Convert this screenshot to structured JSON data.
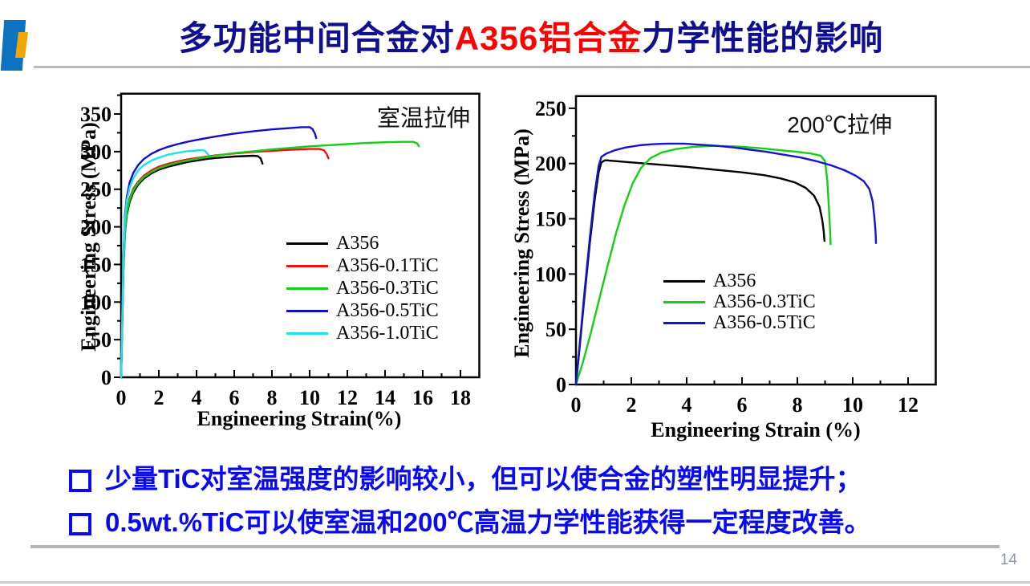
{
  "slide": {
    "title": {
      "prefix": "多功能中间合金对",
      "highlight": "A356铝合金",
      "suffix": "力学性能的影响"
    },
    "bullets": [
      "少量TiC对室温强度的影响较小，但可以使合金的塑性明显提升；",
      "0.5wt.%TiC可以使室温和200℃高温力学性能获得一定程度改善。"
    ],
    "page_number": "14",
    "colors": {
      "title": "#10108f",
      "title_highlight": "#ff0000",
      "bullet": "#0a0af0",
      "logo_blue": "#0d72bf",
      "logo_orange": "#f2a700"
    }
  },
  "chart_data": [
    {
      "type": "line",
      "title_annotation": "室温拉伸",
      "xlabel": "Engineering Strain(%)",
      "ylabel": "Engineering Stress (MPa)",
      "xlim": [
        0,
        19
      ],
      "ylim": [
        0,
        377
      ],
      "xticks": [
        0,
        2,
        4,
        6,
        8,
        10,
        12,
        14,
        16,
        18
      ],
      "yticks": [
        0,
        50,
        100,
        150,
        200,
        250,
        300,
        350
      ],
      "grid": false,
      "legend_position": "center-right",
      "series": [
        {
          "name": "A356",
          "color": "#000000",
          "points": [
            [
              0,
              0
            ],
            [
              0.06,
              70
            ],
            [
              0.12,
              140
            ],
            [
              0.2,
              190
            ],
            [
              0.3,
              216
            ],
            [
              0.45,
              233
            ],
            [
              0.65,
              246
            ],
            [
              0.9,
              256
            ],
            [
              1.2,
              264
            ],
            [
              1.6,
              271
            ],
            [
              2,
              276
            ],
            [
              2.5,
              280
            ],
            [
              3,
              283
            ],
            [
              3.5,
              286
            ],
            [
              4,
              288
            ],
            [
              4.5,
              290
            ],
            [
              5,
              291.5
            ],
            [
              5.5,
              292.5
            ],
            [
              6,
              293.5
            ],
            [
              6.5,
              294
            ],
            [
              7,
              294.5
            ],
            [
              7.25,
              294
            ],
            [
              7.4,
              291
            ],
            [
              7.5,
              284
            ]
          ]
        },
        {
          "name": "A356-0.1TiC",
          "color": "#ee1111",
          "points": [
            [
              0,
              0
            ],
            [
              0.06,
              72
            ],
            [
              0.12,
              144
            ],
            [
              0.2,
              194
            ],
            [
              0.3,
              221
            ],
            [
              0.45,
              238
            ],
            [
              0.65,
              251
            ],
            [
              0.9,
              260
            ],
            [
              1.2,
              268
            ],
            [
              1.6,
              275
            ],
            [
              2,
              280
            ],
            [
              2.5,
              284
            ],
            [
              3,
              287
            ],
            [
              3.5,
              289.5
            ],
            [
              4,
              291.5
            ],
            [
              5,
              295
            ],
            [
              6,
              297.5
            ],
            [
              7,
              299.5
            ],
            [
              8,
              301
            ],
            [
              9,
              302.5
            ],
            [
              10,
              303.5
            ],
            [
              10.5,
              303.5
            ],
            [
              10.75,
              302
            ],
            [
              10.9,
              297
            ],
            [
              11,
              291
            ]
          ]
        },
        {
          "name": "A356-0.3TiC",
          "color": "#14d014",
          "points": [
            [
              0,
              0
            ],
            [
              0.06,
              71
            ],
            [
              0.12,
              142
            ],
            [
              0.2,
              192
            ],
            [
              0.3,
              219
            ],
            [
              0.45,
              236
            ],
            [
              0.65,
              249
            ],
            [
              0.9,
              258
            ],
            [
              1.2,
              266
            ],
            [
              1.6,
              273
            ],
            [
              2,
              278
            ],
            [
              2.5,
              282
            ],
            [
              3,
              285.5
            ],
            [
              3.5,
              288
            ],
            [
              4,
              290.5
            ],
            [
              5,
              294.5
            ],
            [
              6,
              298
            ],
            [
              7,
              300.5
            ],
            [
              8,
              303
            ],
            [
              9,
              305
            ],
            [
              10,
              307
            ],
            [
              11,
              308.5
            ],
            [
              12,
              310
            ],
            [
              13,
              311.5
            ],
            [
              14,
              312.5
            ],
            [
              15,
              313
            ],
            [
              15.5,
              313
            ],
            [
              15.7,
              311
            ],
            [
              15.8,
              307
            ]
          ]
        },
        {
          "name": "A356-0.5TiC",
          "color": "#0f0fc8",
          "points": [
            [
              0,
              0
            ],
            [
              0.06,
              80
            ],
            [
              0.12,
              160
            ],
            [
              0.2,
              215
            ],
            [
              0.3,
              240
            ],
            [
              0.45,
              259
            ],
            [
              0.65,
              272
            ],
            [
              0.9,
              282
            ],
            [
              1.2,
              290
            ],
            [
              1.6,
              297
            ],
            [
              2,
              302
            ],
            [
              2.5,
              306.5
            ],
            [
              3,
              310
            ],
            [
              3.5,
              313
            ],
            [
              4,
              315.5
            ],
            [
              5,
              320
            ],
            [
              6,
              324
            ],
            [
              7,
              327
            ],
            [
              8,
              329.5
            ],
            [
              9,
              331.5
            ],
            [
              9.6,
              332.5
            ],
            [
              10,
              332.5
            ],
            [
              10.15,
              330
            ],
            [
              10.28,
              324
            ],
            [
              10.35,
              318
            ]
          ]
        },
        {
          "name": "A356-1.0TiC",
          "color": "#1ee0ee",
          "points": [
            [
              0,
              0
            ],
            [
              0.06,
              78
            ],
            [
              0.12,
              155
            ],
            [
              0.2,
              210
            ],
            [
              0.3,
              235
            ],
            [
              0.45,
              252
            ],
            [
              0.65,
              265
            ],
            [
              0.9,
              275
            ],
            [
              1.2,
              282
            ],
            [
              1.6,
              288
            ],
            [
              2,
              292
            ],
            [
              2.5,
              296
            ],
            [
              3,
              298.5
            ],
            [
              3.5,
              300.5
            ],
            [
              4,
              301.5
            ],
            [
              4.3,
              302
            ],
            [
              4.45,
              301
            ],
            [
              4.55,
              298
            ],
            [
              4.62,
              296
            ]
          ]
        }
      ]
    },
    {
      "type": "line",
      "title_annotation": "200℃拉伸",
      "xlabel": "Engineering Strain (%)",
      "ylabel": "Engineering Stress (MPa)",
      "xlim": [
        0,
        13
      ],
      "ylim": [
        0,
        261
      ],
      "xticks": [
        0,
        2,
        4,
        6,
        8,
        10,
        12
      ],
      "yticks": [
        0,
        50,
        100,
        150,
        200,
        250
      ],
      "grid": false,
      "legend_position": "center-left",
      "series": [
        {
          "name": "A356",
          "color": "#000000",
          "points": [
            [
              0,
              0
            ],
            [
              0.12,
              30
            ],
            [
              0.3,
              78
            ],
            [
              0.5,
              128
            ],
            [
              0.68,
              168
            ],
            [
              0.82,
              192
            ],
            [
              0.92,
              201
            ],
            [
              1.05,
              203
            ],
            [
              1.3,
              202.5
            ],
            [
              2,
              201
            ],
            [
              3,
              199
            ],
            [
              4,
              197
            ],
            [
              5,
              194.5
            ],
            [
              6,
              192
            ],
            [
              6.8,
              189.5
            ],
            [
              7.4,
              186.5
            ],
            [
              7.9,
              183
            ],
            [
              8.3,
              178
            ],
            [
              8.6,
              171
            ],
            [
              8.8,
              161
            ],
            [
              8.9,
              149
            ],
            [
              8.95,
              139
            ],
            [
              8.98,
              130
            ]
          ]
        },
        {
          "name": "A356-0.3TiC",
          "color": "#14d014",
          "points": [
            [
              0,
              0
            ],
            [
              0.25,
              20
            ],
            [
              0.55,
              48
            ],
            [
              0.85,
              78
            ],
            [
              1.15,
              108
            ],
            [
              1.45,
              137
            ],
            [
              1.75,
              162
            ],
            [
              2.05,
              182
            ],
            [
              2.35,
              196
            ],
            [
              2.7,
              205
            ],
            [
              3.1,
              210
            ],
            [
              3.6,
              213
            ],
            [
              4.2,
              215
            ],
            [
              5,
              216
            ],
            [
              5.8,
              215.5
            ],
            [
              6.6,
              214
            ],
            [
              7.4,
              212
            ],
            [
              8,
              210.5
            ],
            [
              8.5,
              209
            ],
            [
              8.85,
              207
            ],
            [
              9,
              202
            ],
            [
              9.08,
              185
            ],
            [
              9.14,
              160
            ],
            [
              9.18,
              140
            ],
            [
              9.2,
              127
            ]
          ]
        },
        {
          "name": "A356-0.5TiC",
          "color": "#1414cc",
          "points": [
            [
              0,
              0
            ],
            [
              0.12,
              32
            ],
            [
              0.3,
              82
            ],
            [
              0.5,
              133
            ],
            [
              0.68,
              174
            ],
            [
              0.82,
              198
            ],
            [
              0.92,
              206
            ],
            [
              1.1,
              209
            ],
            [
              1.4,
              212
            ],
            [
              1.8,
              214.5
            ],
            [
              2.3,
              216.5
            ],
            [
              2.8,
              217.5
            ],
            [
              3.3,
              218
            ],
            [
              3.9,
              218
            ],
            [
              4.5,
              217
            ],
            [
              5.1,
              216
            ],
            [
              5.7,
              214.5
            ],
            [
              6.3,
              212.5
            ],
            [
              6.9,
              210.5
            ],
            [
              7.5,
              208
            ],
            [
              8.1,
              205.5
            ],
            [
              8.7,
              202
            ],
            [
              9.2,
              198.5
            ],
            [
              9.7,
              194
            ],
            [
              10.1,
              189
            ],
            [
              10.4,
              184
            ],
            [
              10.6,
              177
            ],
            [
              10.72,
              166
            ],
            [
              10.78,
              152
            ],
            [
              10.82,
              140
            ],
            [
              10.84,
              128
            ]
          ]
        }
      ]
    }
  ]
}
